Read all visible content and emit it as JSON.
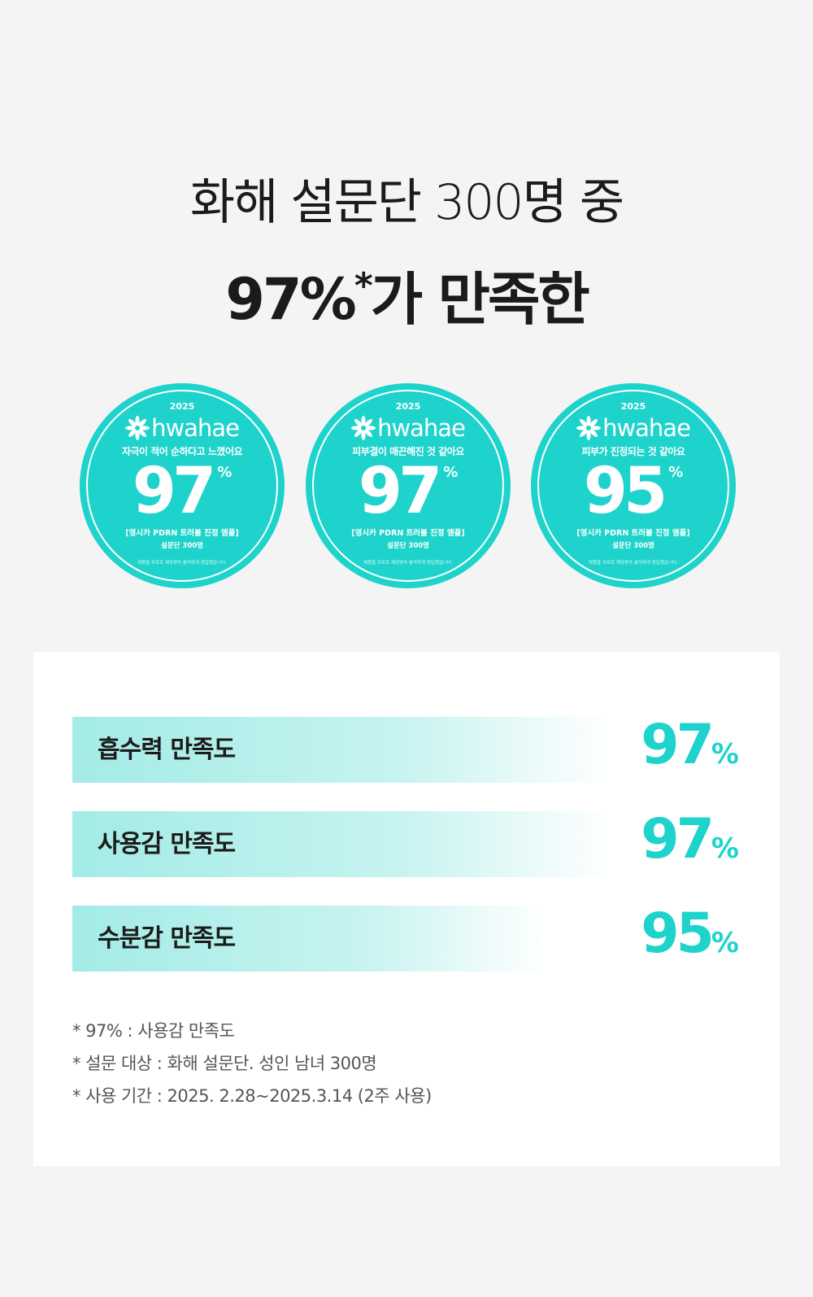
{
  "header": {
    "line1": "화해 설문단 300명 중",
    "highlight": "97%",
    "asterisk": "*",
    "line2_rest": "가 만족한"
  },
  "badges": [
    {
      "year": "2025",
      "brand": "hwahae",
      "claim": "자극이 적어 순하다고 느꼈어요",
      "value": "97",
      "unit": "%",
      "product": "[영시카 PDRN 트러블 진정 앰플]",
      "panel": "설문단 300명",
      "disclaimer": "제품을 무료로 제공받아 솔직하게 응답했습니다."
    },
    {
      "year": "2025",
      "brand": "hwahae",
      "claim": "피부결이 매끈해진 것 같아요",
      "value": "97",
      "unit": "%",
      "product": "[영시카 PDRN 트러블 진정 앰플]",
      "panel": "설문단 300명",
      "disclaimer": "제품을 무료로 제공받아 솔직하게 응답했습니다."
    },
    {
      "year": "2025",
      "brand": "hwahae",
      "claim": "피부가 진정되는 것 같아요",
      "value": "95",
      "unit": "%",
      "product": "[영시카 PDRN 트러블 진정 앰플]",
      "panel": "설문단 300명",
      "disclaimer": "제품을 무료로 제공받아 솔직하게 응답했습니다."
    }
  ],
  "bars": [
    {
      "label": "흡수력 만족도",
      "value": "97",
      "unit": "%"
    },
    {
      "label": "사용감 만족도",
      "value": "97",
      "unit": "%"
    },
    {
      "label": "수분감 만족도",
      "value": "95",
      "unit": "%"
    }
  ],
  "notes": [
    "* 97% : 사용감 만족도",
    "* 설문 대상 : 화해 설문단. 성인 남녀 300명",
    "* 사용 기간 : 2025. 2.28~2025.3.14 (2주 사용)"
  ]
}
